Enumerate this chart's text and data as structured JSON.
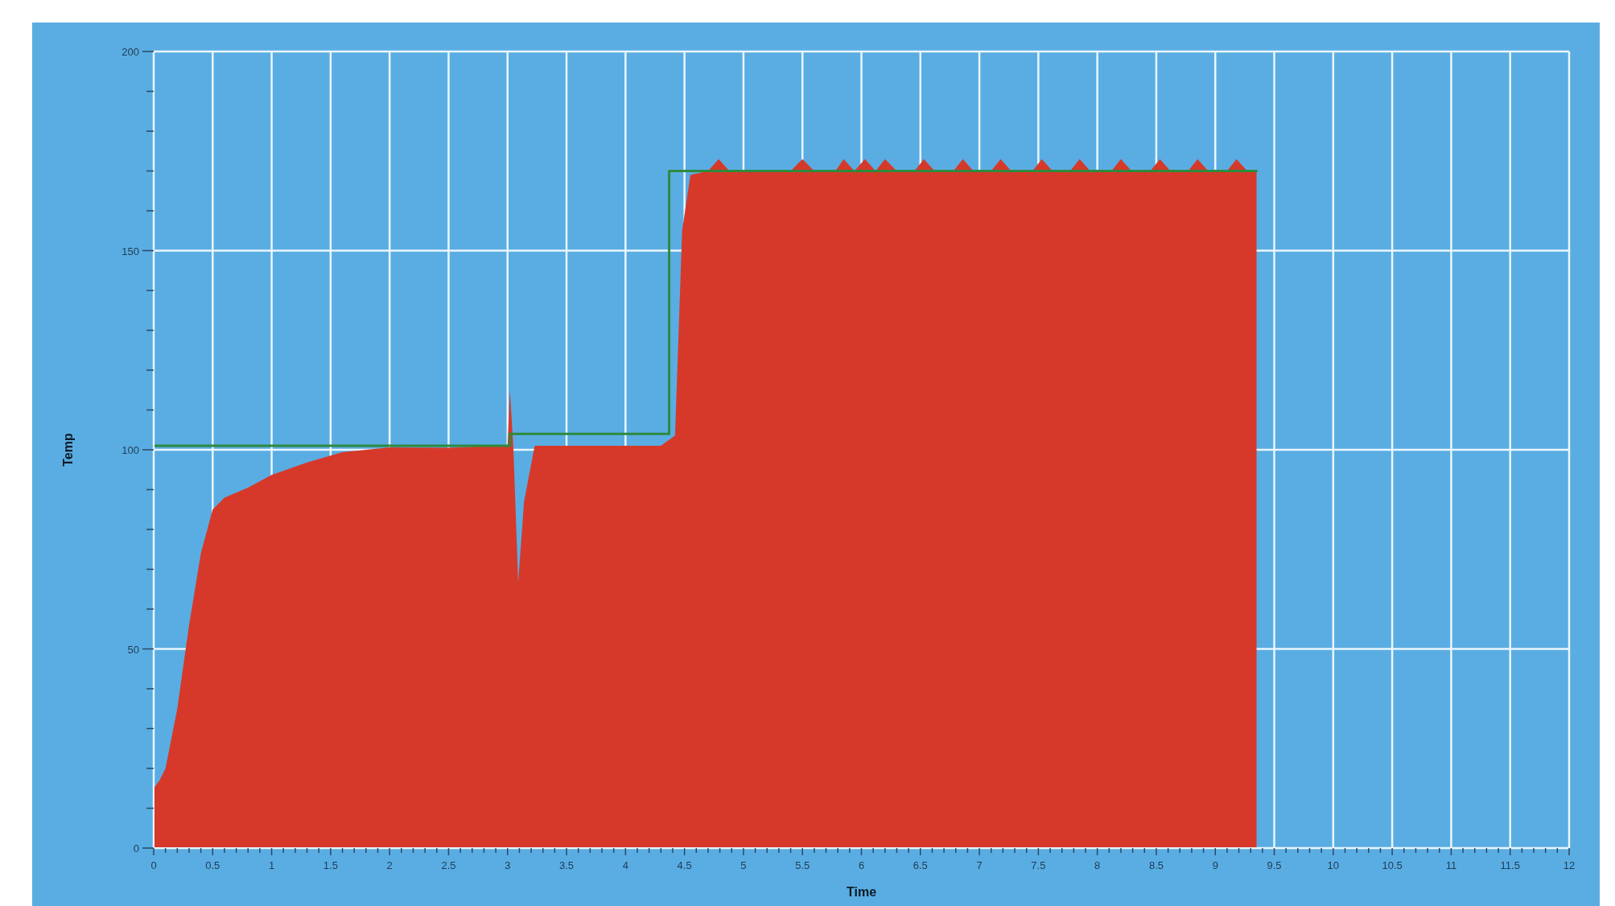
{
  "chart_data": {
    "type": "area",
    "xlabel": "Time",
    "ylabel": "Temp",
    "xlim": [
      0,
      12
    ],
    "ylim": [
      0,
      200
    ],
    "xticks": [
      0,
      {
        "value": 0.1,
        "label": null
      },
      {
        "value": 0.2,
        "label": null
      },
      {
        "value": 0.3,
        "label": null
      },
      {
        "value": 0.4,
        "label": null
      },
      0.5,
      {
        "value": 0.6,
        "label": null
      },
      {
        "value": 0.7,
        "label": null
      },
      {
        "value": 0.8,
        "label": null
      },
      {
        "value": 0.9,
        "label": null
      },
      1,
      {
        "value": 1.1,
        "label": null
      },
      {
        "value": 1.2,
        "label": null
      },
      {
        "value": 1.3,
        "label": null
      },
      {
        "value": 1.4,
        "label": null
      },
      1.5,
      {
        "value": 1.6,
        "label": null
      },
      {
        "value": 1.7,
        "label": null
      },
      {
        "value": 1.8,
        "label": null
      },
      {
        "value": 1.9,
        "label": null
      },
      2,
      {
        "value": 2.1,
        "label": null
      },
      {
        "value": 2.2,
        "label": null
      },
      {
        "value": 2.3,
        "label": null
      },
      {
        "value": 2.4,
        "label": null
      },
      2.5,
      {
        "value": 2.6,
        "label": null
      },
      {
        "value": 2.7,
        "label": null
      },
      {
        "value": 2.8,
        "label": null
      },
      {
        "value": 2.9,
        "label": null
      },
      3,
      {
        "value": 3.1,
        "label": null
      },
      {
        "value": 3.2,
        "label": null
      },
      {
        "value": 3.3,
        "label": null
      },
      {
        "value": 3.4,
        "label": null
      },
      3.5,
      {
        "value": 3.6,
        "label": null
      },
      {
        "value": 3.7,
        "label": null
      },
      {
        "value": 3.8,
        "label": null
      },
      {
        "value": 3.9,
        "label": null
      },
      4,
      {
        "value": 4.1,
        "label": null
      },
      {
        "value": 4.2,
        "label": null
      },
      {
        "value": 4.3,
        "label": null
      },
      {
        "value": 4.4,
        "label": null
      },
      4.5,
      {
        "value": 4.6,
        "label": null
      },
      {
        "value": 4.7,
        "label": null
      },
      {
        "value": 4.8,
        "label": null
      },
      {
        "value": 4.9,
        "label": null
      },
      5,
      {
        "value": 5.1,
        "label": null
      },
      {
        "value": 5.2,
        "label": null
      },
      {
        "value": 5.3,
        "label": null
      },
      {
        "value": 5.4,
        "label": null
      },
      5.5,
      {
        "value": 5.6,
        "label": null
      },
      {
        "value": 5.7,
        "label": null
      },
      {
        "value": 5.8,
        "label": null
      },
      {
        "value": 5.9,
        "label": null
      },
      6,
      {
        "value": 6.1,
        "label": null
      },
      {
        "value": 6.2,
        "label": null
      },
      {
        "value": 6.3,
        "label": null
      },
      {
        "value": 6.4,
        "label": null
      },
      6.5,
      {
        "value": 6.6,
        "label": null
      },
      {
        "value": 6.7,
        "label": null
      },
      {
        "value": 6.8,
        "label": null
      },
      {
        "value": 6.9,
        "label": null
      },
      7,
      {
        "value": 7.1,
        "label": null
      },
      {
        "value": 7.2,
        "label": null
      },
      {
        "value": 7.3,
        "label": null
      },
      {
        "value": 7.4,
        "label": null
      },
      7.5,
      {
        "value": 7.6,
        "label": null
      },
      {
        "value": 7.7,
        "label": null
      },
      {
        "value": 7.8,
        "label": null
      },
      {
        "value": 7.9,
        "label": null
      },
      8,
      {
        "value": 8.1,
        "label": null
      },
      {
        "value": 8.2,
        "label": null
      },
      {
        "value": 8.3,
        "label": null
      },
      {
        "value": 8.4,
        "label": null
      },
      8.5,
      {
        "value": 8.6,
        "label": null
      },
      {
        "value": 8.7,
        "label": null
      },
      {
        "value": 8.8,
        "label": null
      },
      {
        "value": 8.9,
        "label": null
      },
      9,
      {
        "value": 9.1,
        "label": null
      },
      {
        "value": 9.2,
        "label": null
      },
      {
        "value": 9.3,
        "label": null
      },
      {
        "value": 9.4,
        "label": null
      },
      9.5,
      {
        "value": 9.6,
        "label": null
      },
      {
        "value": 9.7,
        "label": null
      },
      {
        "value": 9.8,
        "label": null
      },
      {
        "value": 9.9,
        "label": null
      },
      10,
      {
        "value": 10.1,
        "label": null
      },
      {
        "value": 10.2,
        "label": null
      },
      {
        "value": 10.3,
        "label": null
      },
      {
        "value": 10.4,
        "label": null
      },
      10.5,
      {
        "value": 10.6,
        "label": null
      },
      {
        "value": 10.7,
        "label": null
      },
      {
        "value": 10.8,
        "label": null
      },
      {
        "value": 10.9,
        "label": null
      },
      11,
      {
        "value": 11.1,
        "label": null
      },
      {
        "value": 11.2,
        "label": null
      },
      {
        "value": 11.3,
        "label": null
      },
      {
        "value": 11.4,
        "label": null
      },
      11.5,
      {
        "value": 11.6,
        "label": null
      },
      {
        "value": 11.7,
        "label": null
      },
      {
        "value": 11.8,
        "label": null
      },
      {
        "value": 11.9,
        "label": null
      },
      12
    ],
    "yticks": [
      0,
      {
        "value": 10,
        "label": null
      },
      {
        "value": 20,
        "label": null
      },
      {
        "value": 30,
        "label": null
      },
      {
        "value": 40,
        "label": null
      },
      50,
      {
        "value": 60,
        "label": null
      },
      {
        "value": 70,
        "label": null
      },
      {
        "value": 80,
        "label": null
      },
      {
        "value": 90,
        "label": null
      },
      100,
      {
        "value": 110,
        "label": null
      },
      {
        "value": 120,
        "label": null
      },
      {
        "value": 130,
        "label": null
      },
      {
        "value": 140,
        "label": null
      },
      150,
      {
        "value": 160,
        "label": null
      },
      {
        "value": 170,
        "label": null
      },
      {
        "value": 180,
        "label": null
      },
      {
        "value": 190,
        "label": null
      },
      200
    ],
    "grid": true,
    "series": [
      {
        "color": "#d6392a",
        "x": [
          0,
          0.05,
          0.1,
          0.2,
          0.3,
          0.4,
          0.5,
          0.6,
          0.8,
          1.0,
          1.3,
          1.6,
          2.0,
          2.5,
          2.9,
          3.0,
          3.02,
          3.05,
          3.09,
          3.14,
          3.23,
          3.5,
          4.0,
          4.3,
          4.42,
          4.48,
          4.55,
          4.7,
          4.79,
          4.88,
          5.4,
          5.5,
          5.6,
          5.78,
          5.85,
          5.94,
          6.03,
          6.12,
          6.2,
          6.3,
          6.45,
          6.53,
          6.62,
          6.78,
          6.86,
          6.95,
          7.1,
          7.18,
          7.27,
          7.45,
          7.53,
          7.62,
          7.77,
          7.85,
          7.94,
          8.12,
          8.2,
          8.29,
          8.45,
          8.53,
          8.62,
          8.77,
          8.85,
          8.94,
          9.1,
          9.18,
          9.27,
          9.35
        ],
        "values": [
          15,
          17,
          20,
          35,
          56,
          74,
          85,
          88,
          90.5,
          93.7,
          96.8,
          99.4,
          100.6,
          100.5,
          101,
          101,
          115,
          100,
          66.7,
          87,
          101,
          101,
          101,
          101,
          103.6,
          155,
          169,
          170,
          173,
          170,
          170,
          173,
          170,
          170,
          173,
          170,
          173,
          170,
          173,
          170,
          170,
          173,
          170,
          170,
          173,
          170,
          170,
          173,
          170,
          170,
          173,
          170,
          170,
          173,
          170,
          170,
          173,
          170,
          170,
          173,
          170,
          170,
          173,
          170,
          170,
          173,
          170,
          170
        ]
      },
      {
        "type": "step",
        "color": "#2e8a3c",
        "x": [
          0,
          3.02,
          4.37,
          9.35
        ],
        "values": [
          101,
          104,
          170,
          170
        ]
      }
    ]
  }
}
